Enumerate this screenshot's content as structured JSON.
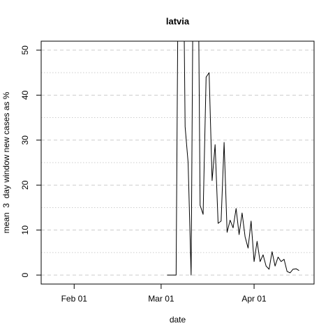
{
  "chart_data": {
    "type": "line",
    "title": "latvia",
    "xlabel": "date",
    "ylabel": "mean  3  day window new cases as %",
    "x_axis": {
      "type": "date",
      "range": [
        "2020-01-21",
        "2020-04-21"
      ],
      "ticks": [
        {
          "date": "2020-02-01",
          "label": "Feb 01"
        },
        {
          "date": "2020-03-01",
          "label": "Mar 01"
        },
        {
          "date": "2020-04-01",
          "label": "Apr 01"
        }
      ]
    },
    "y_axis": {
      "range": [
        -2,
        52
      ],
      "ticks": [
        0,
        10,
        20,
        30,
        40,
        50
      ],
      "minor_gridlines": [
        5,
        15,
        25,
        35,
        45
      ]
    },
    "grid": true,
    "series": [
      {
        "points": [
          [
            "2020-03-03",
            0
          ],
          [
            "2020-03-04",
            0
          ],
          [
            "2020-03-05",
            0
          ],
          [
            "2020-03-06",
            0
          ],
          [
            "2020-03-07",
            100
          ],
          [
            "2020-03-08",
            100
          ],
          [
            "2020-03-09",
            33
          ],
          [
            "2020-03-10",
            25
          ],
          [
            "2020-03-11",
            0
          ],
          [
            "2020-03-12",
            100
          ],
          [
            "2020-03-13",
            100
          ],
          [
            "2020-03-14",
            15.5
          ],
          [
            "2020-03-15",
            13.5
          ],
          [
            "2020-03-16",
            44
          ],
          [
            "2020-03-17",
            45
          ],
          [
            "2020-03-18",
            21
          ],
          [
            "2020-03-19",
            29
          ],
          [
            "2020-03-20",
            11.5
          ],
          [
            "2020-03-21",
            12
          ],
          [
            "2020-03-22",
            29.5
          ],
          [
            "2020-03-23",
            9.5
          ],
          [
            "2020-03-24",
            12.2
          ],
          [
            "2020-03-25",
            10.5
          ],
          [
            "2020-03-26",
            14.8
          ],
          [
            "2020-03-27",
            9
          ],
          [
            "2020-03-28",
            13.8
          ],
          [
            "2020-03-29",
            8.5
          ],
          [
            "2020-03-30",
            6
          ],
          [
            "2020-03-31",
            12
          ],
          [
            "2020-04-01",
            3
          ],
          [
            "2020-04-02",
            7.5
          ],
          [
            "2020-04-03",
            3
          ],
          [
            "2020-04-04",
            4.5
          ],
          [
            "2020-04-05",
            2
          ],
          [
            "2020-04-06",
            1.3
          ],
          [
            "2020-04-07",
            5.2
          ],
          [
            "2020-04-08",
            2
          ],
          [
            "2020-04-09",
            4
          ],
          [
            "2020-04-10",
            3
          ],
          [
            "2020-04-11",
            3.5
          ],
          [
            "2020-04-12",
            0.8
          ],
          [
            "2020-04-13",
            0.5
          ],
          [
            "2020-04-14",
            1.3
          ],
          [
            "2020-04-15",
            1.4
          ],
          [
            "2020-04-16",
            1.0
          ]
        ]
      }
    ]
  }
}
